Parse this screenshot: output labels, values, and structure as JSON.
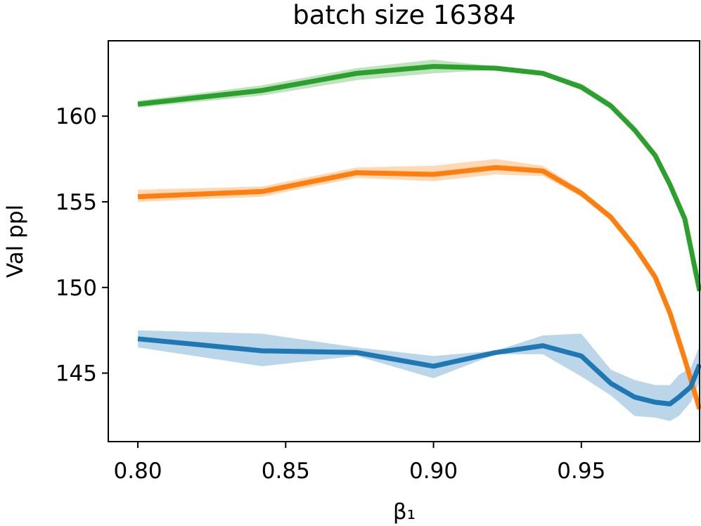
{
  "chart_data": {
    "type": "line",
    "title": "batch size 16384",
    "xlabel": "β₁",
    "ylabel": "Val ppl",
    "xlim": [
      0.79,
      0.99
    ],
    "ylim": [
      141.0,
      164.4
    ],
    "xticks": [
      0.8,
      0.85,
      0.9,
      0.95
    ],
    "xtick_labels": [
      "0.80",
      "0.85",
      "0.90",
      "0.95"
    ],
    "yticks": [
      145,
      150,
      155,
      160
    ],
    "ytick_labels": [
      "145",
      "150",
      "155",
      "160"
    ],
    "grid": false,
    "legend": "none",
    "series": [
      {
        "color": "#2ca02c",
        "x": [
          0.8,
          0.842,
          0.874,
          0.9,
          0.921,
          0.937,
          0.95,
          0.96,
          0.968,
          0.975,
          0.98,
          0.985,
          0.99
        ],
        "y": [
          160.7,
          161.5,
          162.5,
          162.9,
          162.8,
          162.5,
          161.7,
          160.6,
          159.2,
          157.7,
          156.0,
          154.0,
          149.8
        ],
        "y_low": [
          160.5,
          161.2,
          162.1,
          162.5,
          162.7,
          162.4,
          161.5,
          160.4,
          159.0,
          157.5,
          155.9,
          153.8,
          149.6
        ],
        "y_high": [
          160.9,
          161.8,
          162.8,
          163.3,
          162.9,
          162.6,
          161.9,
          160.8,
          159.4,
          157.9,
          156.2,
          154.2,
          150.0
        ]
      },
      {
        "color": "#ff7f0e",
        "x": [
          0.8,
          0.842,
          0.874,
          0.9,
          0.921,
          0.937,
          0.95,
          0.96,
          0.968,
          0.975,
          0.98,
          0.985,
          0.99
        ],
        "y": [
          155.3,
          155.6,
          156.7,
          156.6,
          157.0,
          156.8,
          155.5,
          154.1,
          152.4,
          150.6,
          148.5,
          145.8,
          142.9
        ],
        "y_low": [
          155.0,
          155.3,
          156.4,
          156.2,
          156.6,
          156.5,
          155.3,
          153.9,
          152.2,
          150.4,
          148.3,
          145.6,
          142.7
        ],
        "y_high": [
          155.7,
          155.9,
          157.0,
          157.1,
          157.5,
          157.1,
          155.7,
          154.3,
          152.6,
          150.8,
          148.7,
          146.0,
          143.1
        ]
      },
      {
        "color": "#1f77b4",
        "x": [
          0.8,
          0.842,
          0.874,
          0.9,
          0.921,
          0.937,
          0.95,
          0.96,
          0.968,
          0.975,
          0.98,
          0.983,
          0.987,
          0.99
        ],
        "y": [
          147.0,
          146.3,
          146.2,
          145.4,
          146.2,
          146.6,
          146.0,
          144.4,
          143.6,
          143.3,
          143.2,
          143.6,
          144.2,
          145.5
        ],
        "y_low": [
          146.5,
          145.4,
          146.0,
          144.7,
          146.1,
          146.1,
          144.8,
          143.7,
          142.5,
          142.4,
          142.2,
          142.5,
          143.3,
          144.5
        ],
        "y_high": [
          147.5,
          147.3,
          146.5,
          146.0,
          146.3,
          147.2,
          147.3,
          145.2,
          144.6,
          144.3,
          144.3,
          144.9,
          145.3,
          146.6
        ]
      }
    ]
  }
}
